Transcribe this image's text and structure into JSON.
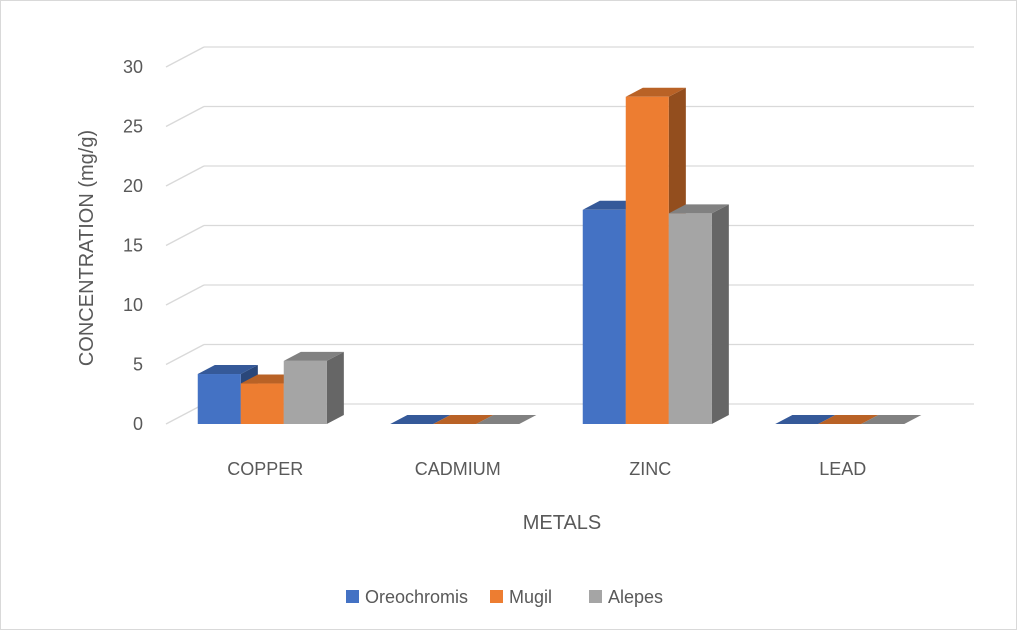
{
  "chart_data": {
    "type": "bar",
    "subtype": "3d-clustered-column",
    "title": "",
    "xlabel": "METALS",
    "ylabel": "CONCENTRATION (mg/g)",
    "categories": [
      "COPPER",
      "CADMIUM",
      "ZINC",
      "LEAD"
    ],
    "series": [
      {
        "name": "Oreochromis",
        "color": "#4472c4",
        "values": [
          4.2,
          0.0,
          18.0,
          0.0
        ]
      },
      {
        "name": "Mugil",
        "color": "#ed7d31",
        "values": [
          3.4,
          0.0,
          27.5,
          0.0
        ]
      },
      {
        "name": "Alepes",
        "color": "#a5a5a5",
        "values": [
          5.3,
          0.0,
          17.7,
          0.0
        ]
      }
    ],
    "ylim": [
      0,
      30
    ],
    "yticks": [
      0,
      5,
      10,
      15,
      20,
      25,
      30
    ],
    "grid": true,
    "legend": "bottom"
  }
}
